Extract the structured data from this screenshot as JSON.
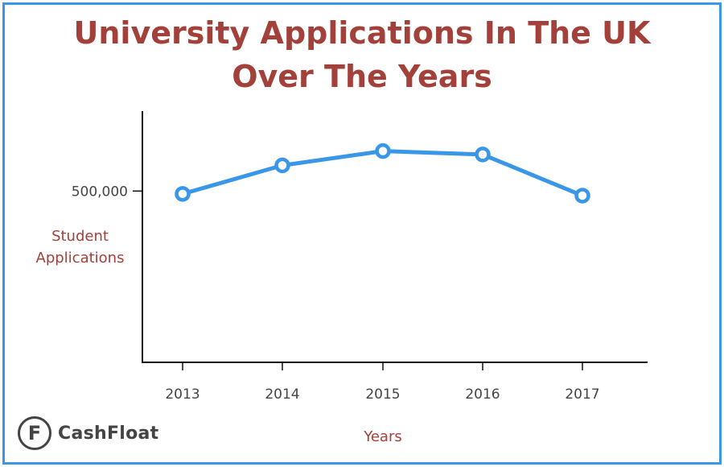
{
  "title_lines": [
    "University Applications In The UK",
    "Over The Years"
  ],
  "logo": {
    "text": "CashFloat",
    "mark": "F"
  },
  "colors": {
    "title": "#a3403a",
    "line": "#3a96e6",
    "frame": "#3a96e6",
    "axis": "#111111"
  },
  "chart_data": {
    "type": "line",
    "title": "University Applications In The UK Over The Years",
    "xlabel": "Years",
    "ylabel": "Student Applications",
    "categories": [
      "2013",
      "2014",
      "2015",
      "2016",
      "2017"
    ],
    "series": [
      {
        "values": [
          495000,
          545000,
          570000,
          564000,
          492000
        ]
      }
    ],
    "yticks": [
      {
        "value": 500000,
        "label": "500,000"
      }
    ],
    "ylim": [
      200000,
      640000
    ],
    "grid": false,
    "legend": "none"
  }
}
